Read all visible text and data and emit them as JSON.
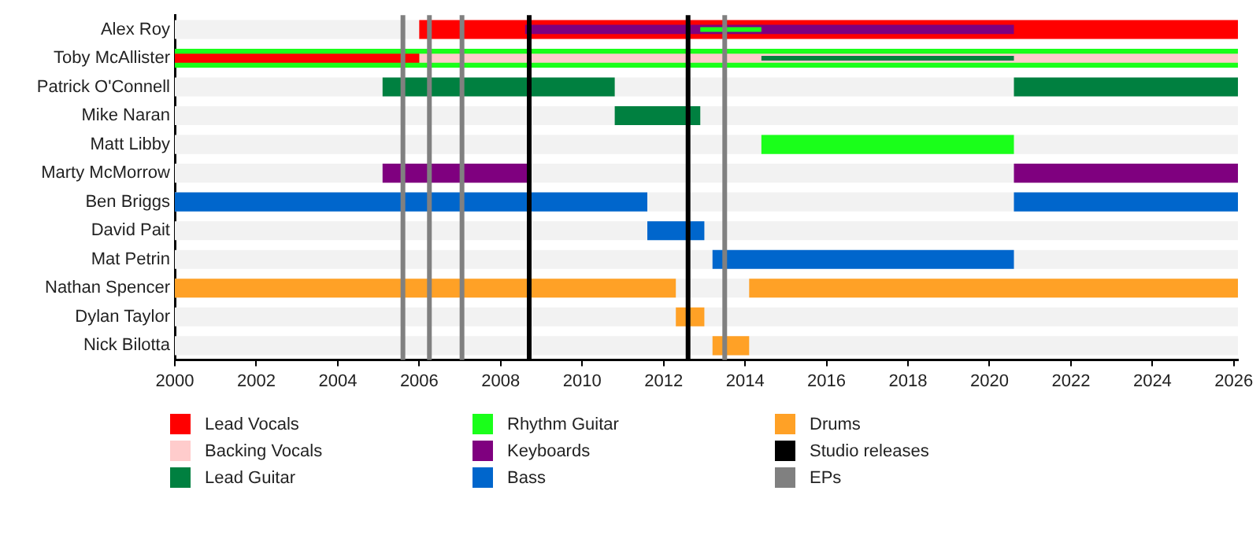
{
  "chart_data": {
    "type": "bar",
    "orientation": "horizontal",
    "categories": [
      "Alex Roy",
      "Toby McAllister",
      "Patrick O'Connell",
      "Mike Naran",
      "Matt Libby",
      "Marty McMorrow",
      "Ben Briggs",
      "David Pait",
      "Mat Petrin",
      "Nathan Spencer",
      "Dylan Taylor",
      "Nick Bilotta"
    ],
    "series": [
      {
        "name": "Lead Vocals",
        "color": "#ff0000",
        "base": [
          2006.0,
          2000,
          null,
          null,
          null,
          null,
          null,
          null,
          null,
          null,
          null,
          null
        ],
        "values": [
          20.1,
          6.0,
          null,
          null,
          null,
          null,
          null,
          null,
          null,
          null,
          null,
          null
        ]
      },
      {
        "name": "Backing Vocals",
        "color": "#ffcccc",
        "base": [
          null,
          2006.0,
          null,
          null,
          null,
          null,
          null,
          null,
          null,
          null,
          null,
          null
        ],
        "values": [
          null,
          20.1,
          null,
          null,
          null,
          null,
          null,
          null,
          null,
          null,
          null,
          null
        ]
      },
      {
        "name": "Lead Guitar",
        "color": "#008040",
        "base": [
          null,
          2014.4,
          2005.1,
          2010.8,
          null,
          null,
          null,
          null,
          null,
          null,
          null,
          null
        ],
        "values": [
          null,
          6.2,
          5.7,
          2.1,
          null,
          null,
          null,
          null,
          null,
          null,
          null,
          null
        ]
      },
      {
        "color": "#008040",
        "base": [
          null,
          null,
          2020.6,
          null,
          null,
          null,
          null,
          null,
          null,
          null,
          null,
          null
        ],
        "values": [
          null,
          null,
          5.5,
          null,
          null,
          null,
          null,
          null,
          null,
          null,
          null,
          null
        ]
      },
      {
        "name": "Rhythm Guitar",
        "color": "#1aff1a",
        "base": [
          null,
          2000,
          null,
          null,
          2014.4,
          null,
          null,
          null,
          null,
          null,
          null,
          null
        ],
        "values": [
          null,
          26.1,
          null,
          null,
          6.2,
          null,
          null,
          null,
          null,
          null,
          null,
          null
        ]
      },
      {
        "color": "#1aff1a",
        "base": [
          2012.9,
          null,
          null,
          null,
          null,
          null,
          null,
          null,
          null,
          null,
          null,
          null
        ],
        "values": [
          1.5,
          null,
          null,
          null,
          null,
          null,
          null,
          null,
          null,
          null,
          null,
          null
        ]
      },
      {
        "name": "Keyboards",
        "color": "#7f007f",
        "base": [
          2008.6,
          null,
          null,
          null,
          null,
          2005.1,
          null,
          null,
          null,
          null,
          null,
          null
        ],
        "values": [
          12.0,
          null,
          null,
          null,
          null,
          3.6,
          null,
          null,
          null,
          null,
          null,
          null
        ]
      },
      {
        "color": "#7f007f",
        "base": [
          null,
          null,
          null,
          null,
          null,
          2020.6,
          null,
          null,
          null,
          null,
          null,
          null
        ],
        "values": [
          null,
          null,
          null,
          null,
          null,
          5.5,
          null,
          null,
          null,
          null,
          null,
          null
        ]
      },
      {
        "name": "Bass",
        "color": "#0066cc",
        "base": [
          null,
          null,
          null,
          null,
          null,
          null,
          2000,
          2011.6,
          2013.2,
          null,
          null,
          null
        ],
        "values": [
          null,
          null,
          null,
          null,
          null,
          null,
          11.6,
          1.4,
          7.4,
          null,
          null,
          null
        ]
      },
      {
        "color": "#0066cc",
        "base": [
          null,
          null,
          null,
          null,
          null,
          null,
          2020.6,
          null,
          null,
          null,
          null,
          null
        ],
        "values": [
          null,
          null,
          null,
          null,
          null,
          null,
          5.5,
          null,
          null,
          null,
          null,
          null
        ]
      },
      {
        "name": "Drums",
        "color": "#ffa126",
        "base": [
          null,
          null,
          null,
          null,
          null,
          null,
          null,
          null,
          null,
          2000,
          2012.3,
          2013.2
        ],
        "values": [
          null,
          null,
          null,
          null,
          null,
          null,
          null,
          null,
          null,
          12.3,
          0.7,
          0.9
        ]
      },
      {
        "color": "#ffa126",
        "base": [
          null,
          null,
          null,
          null,
          null,
          null,
          null,
          null,
          null,
          2014.1,
          null,
          null
        ],
        "values": [
          null,
          null,
          null,
          null,
          null,
          null,
          null,
          null,
          null,
          12.0,
          null,
          null
        ]
      }
    ],
    "ref_lines": [
      {
        "axis": "x",
        "value": 2008.7,
        "label": "Studio releases",
        "color": "#000000"
      },
      {
        "axis": "x",
        "value": 2012.6,
        "color": "#000000"
      },
      {
        "axis": "x",
        "value": 2005.6,
        "label": "EPs",
        "color": "#808080"
      },
      {
        "axis": "x",
        "value": 2006.25,
        "color": "#808080"
      },
      {
        "axis": "x",
        "value": 2007.05,
        "color": "#808080"
      },
      {
        "axis": "x",
        "value": 2013.5,
        "color": "#808080"
      }
    ],
    "xlim": [
      2000,
      2026.1
    ],
    "xticks": [
      2000,
      2002,
      2004,
      2006,
      2008,
      2010,
      2012,
      2014,
      2016,
      2018,
      2020,
      2022,
      2024,
      2026
    ],
    "grid": false,
    "legend": "bottom left"
  }
}
